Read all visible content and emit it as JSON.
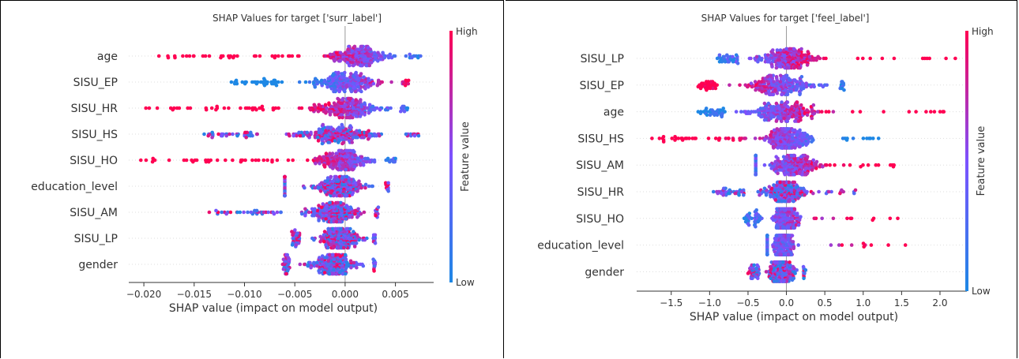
{
  "chart_data": [
    {
      "type": "scatter",
      "subtype": "shap-beeswarm",
      "title": "SHAP Values for target ['surr_label']",
      "xlabel": "SHAP value (impact on model output)",
      "ylabel": "",
      "xlim": [
        -0.0215,
        0.0088
      ],
      "xticks": [
        -0.02,
        -0.015,
        -0.01,
        -0.005,
        0.0,
        0.005
      ],
      "xtick_labels": [
        "−0.020",
        "−0.015",
        "−0.010",
        "−0.005",
        "0.000",
        "0.005"
      ],
      "colorbar": {
        "label": "Feature value",
        "high": "High",
        "low": "Low",
        "colors": [
          "#1e88e5",
          "#7c52ff",
          "#ff0052"
        ]
      },
      "features": [
        {
          "name": "age",
          "min": -0.0185,
          "max": 0.0075,
          "core": [
            -0.004,
            0.006
          ],
          "mode": 0.0025,
          "skew": "low-right"
        },
        {
          "name": "SISU_EP",
          "min": -0.0113,
          "max": 0.0063,
          "core": [
            -0.006,
            0.0055
          ],
          "mode": 0.001,
          "skew": "high-right"
        },
        {
          "name": "SISU_HR",
          "min": -0.0198,
          "max": 0.0062,
          "core": [
            -0.006,
            0.0055
          ],
          "mode": 0.002,
          "skew": "low-right"
        },
        {
          "name": "SISU_HS",
          "min": -0.014,
          "max": 0.0073,
          "core": [
            -0.0085,
            0.006
          ],
          "mode": 0.0015,
          "skew": "mixed"
        },
        {
          "name": "SISU_HO",
          "min": -0.0203,
          "max": 0.005,
          "core": [
            -0.005,
            0.004
          ],
          "mode": 0.0012,
          "skew": "low-right"
        },
        {
          "name": "education_level",
          "min": -0.006,
          "max": 0.0043,
          "core": [
            -0.006,
            0.004
          ],
          "mode": 0.0008,
          "skew": "mixed"
        },
        {
          "name": "SISU_AM",
          "min": -0.0135,
          "max": 0.0033,
          "core": [
            -0.006,
            0.003
          ],
          "mode": 0.001,
          "skew": "mixed"
        },
        {
          "name": "SISU_LP",
          "min": -0.0053,
          "max": 0.003,
          "core": [
            -0.0045,
            0.0028
          ],
          "mode": 0.0008,
          "skew": "mixed"
        },
        {
          "name": "gender",
          "min": -0.0062,
          "max": 0.003,
          "core": [
            -0.0055,
            0.0028
          ],
          "mode": 0.0,
          "skew": "mixed"
        }
      ]
    },
    {
      "type": "scatter",
      "subtype": "shap-beeswarm",
      "title": "SHAP Values for target ['feel_label']",
      "xlabel": "SHAP value (impact on model output)",
      "ylabel": "",
      "xlim": [
        -1.95,
        2.35
      ],
      "xticks": [
        -1.5,
        -1.0,
        -0.5,
        0.0,
        0.5,
        1.0,
        1.5,
        2.0
      ],
      "xtick_labels": [
        "−1.5",
        "−1.0",
        "−0.5",
        "0.0",
        "0.5",
        "1.0",
        "1.5",
        "2.0"
      ],
      "colorbar": {
        "label": "Feature value",
        "high": "High",
        "low": "Low",
        "colors": [
          "#1e88e5",
          "#7c52ff",
          "#ff0052"
        ]
      },
      "features": [
        {
          "name": "SISU_LP",
          "min": -0.9,
          "max": 2.2,
          "core": [
            -0.6,
            0.8
          ],
          "mode": -0.3,
          "skew": "high-right"
        },
        {
          "name": "SISU_EP",
          "min": -1.15,
          "max": 0.75,
          "core": [
            -0.9,
            0.7
          ],
          "mode": 0.0,
          "skew": "low-right"
        },
        {
          "name": "age",
          "min": -1.15,
          "max": 2.05,
          "core": [
            -0.8,
            0.8
          ],
          "mode": -0.2,
          "skew": "high-right"
        },
        {
          "name": "SISU_HS",
          "min": -1.75,
          "max": 1.2,
          "core": [
            -0.5,
            0.5
          ],
          "mode": 0.05,
          "skew": "high-left"
        },
        {
          "name": "SISU_AM",
          "min": -0.4,
          "max": 1.4,
          "core": [
            -0.4,
            0.7
          ],
          "mode": -0.1,
          "skew": "high-right"
        },
        {
          "name": "SISU_HR",
          "min": -0.95,
          "max": 0.9,
          "core": [
            -0.5,
            0.5
          ],
          "mode": 0.0,
          "skew": "mixed"
        },
        {
          "name": "SISU_HO",
          "min": -0.55,
          "max": 1.45,
          "core": [
            -0.3,
            0.3
          ],
          "mode": -0.05,
          "skew": "high-right"
        },
        {
          "name": "education_level",
          "min": -0.25,
          "max": 1.55,
          "core": [
            -0.25,
            0.15
          ],
          "mode": 0.05,
          "skew": "high-right"
        },
        {
          "name": "gender",
          "min": -0.5,
          "max": 0.25,
          "core": [
            -0.35,
            0.22
          ],
          "mode": 0.0,
          "skew": "mixed"
        }
      ]
    }
  ]
}
